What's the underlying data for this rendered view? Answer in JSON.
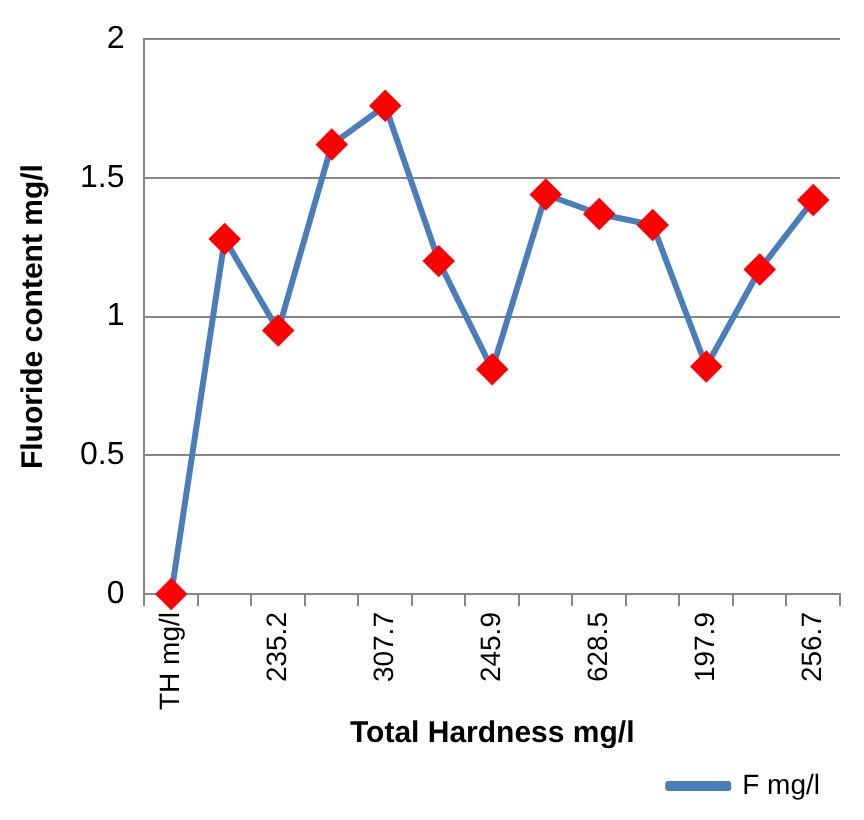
{
  "chart_data": {
    "type": "line",
    "xlabel": "Total Hardness mg/l",
    "ylabel": "Fluoride content mg/l",
    "categories": [
      "TH mg/l",
      null,
      "235.2",
      null,
      "307.7",
      null,
      "245.9",
      null,
      "628.5",
      null,
      "197.9",
      null,
      "256.7"
    ],
    "series": [
      {
        "name": "F mg/l",
        "color": "#4a7ebb",
        "colors": [
          "#ff0000",
          "#ff0000",
          "#ff0000",
          "#ff0000",
          "#ff0000",
          "#ff0000",
          "#ff0000",
          "#ff0000",
          "#ff0000",
          "#ff0000",
          "#ff0000",
          "#ff0000",
          "#ff0000"
        ],
        "values": [
          0,
          1.28,
          0.95,
          1.62,
          1.76,
          1.2,
          0.81,
          1.44,
          1.37,
          1.33,
          0.82,
          1.17,
          1.42
        ]
      }
    ],
    "ylim": [
      0,
      2
    ],
    "yticks": [
      0,
      0.5,
      1,
      1.5,
      2
    ],
    "grid": "y",
    "legend": "bottom right",
    "marker": "diamond",
    "line_style": "solid"
  }
}
